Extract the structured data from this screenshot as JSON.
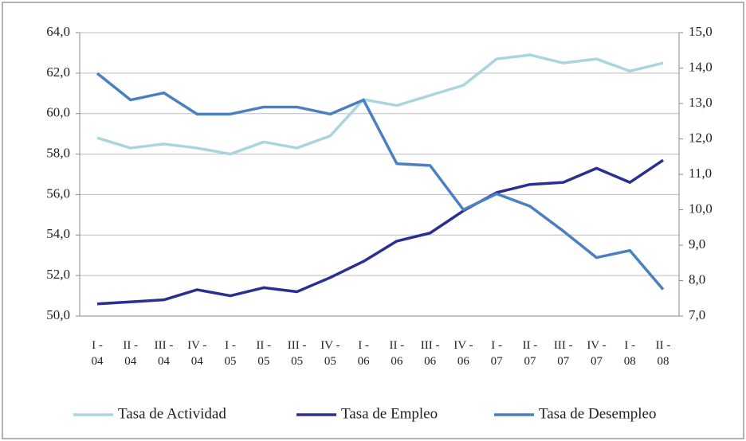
{
  "chart_data": {
    "type": "line",
    "categories": [
      "I - 04",
      "II - 04",
      "III - 04",
      "IV - 04",
      "I - 05",
      "II - 05",
      "III - 05",
      "IV - 05",
      "I - 06",
      "II - 06",
      "III - 06",
      "IV - 06",
      "I - 07",
      "II - 07",
      "III - 07",
      "IV - 07",
      "I - 08",
      "II - 08"
    ],
    "series": [
      {
        "name": "Tasa de Actividad",
        "color": "#a9d6de",
        "values": [
          58.8,
          58.3,
          58.5,
          58.3,
          58.0,
          58.6,
          58.3,
          58.9,
          60.7,
          60.4,
          60.9,
          61.4,
          62.7,
          62.9,
          62.5,
          62.7,
          62.1,
          62.5
        ]
      },
      {
        "name": "Tasa de Empleo",
        "color": "#2b2f8f",
        "values": [
          50.6,
          50.7,
          50.8,
          51.3,
          51.0,
          51.4,
          51.2,
          51.9,
          52.7,
          53.7,
          54.1,
          55.2,
          56.1,
          56.5,
          56.6,
          57.3,
          56.6,
          57.7
        ]
      },
      {
        "name": "Tasa de Desempleo",
        "color": "#4a80c2",
        "axis": "y2",
        "values": [
          13.85,
          13.1,
          13.3,
          12.7,
          12.7,
          12.9,
          12.9,
          12.7,
          13.1,
          11.3,
          11.25,
          10.0,
          10.45,
          10.1,
          9.4,
          8.65,
          8.85,
          7.75
        ]
      }
    ],
    "ylim": [
      50,
      64
    ],
    "yticks": [
      {
        "value": 50,
        "label": "50,0"
      },
      {
        "value": 52,
        "label": "52,0"
      },
      {
        "value": 54,
        "label": "54,0"
      },
      {
        "value": 56,
        "label": "56,0"
      },
      {
        "value": 58,
        "label": "58,0"
      },
      {
        "value": 60,
        "label": "60,0"
      },
      {
        "value": 62,
        "label": "62,0"
      },
      {
        "value": 64,
        "label": "64,0"
      }
    ],
    "y2lim": [
      7,
      15
    ],
    "y2ticks": [
      {
        "value": 7,
        "label": "7,0"
      },
      {
        "value": 8,
        "label": "8,0"
      },
      {
        "value": 9,
        "label": "9,0"
      },
      {
        "value": 10,
        "label": "10,0"
      },
      {
        "value": 11,
        "label": "11,0"
      },
      {
        "value": 12,
        "label": "12,0"
      },
      {
        "value": 13,
        "label": "13,0"
      },
      {
        "value": 14,
        "label": "14,0"
      },
      {
        "value": 15,
        "label": "15,0"
      }
    ],
    "grid": true,
    "legend": "bottom"
  }
}
